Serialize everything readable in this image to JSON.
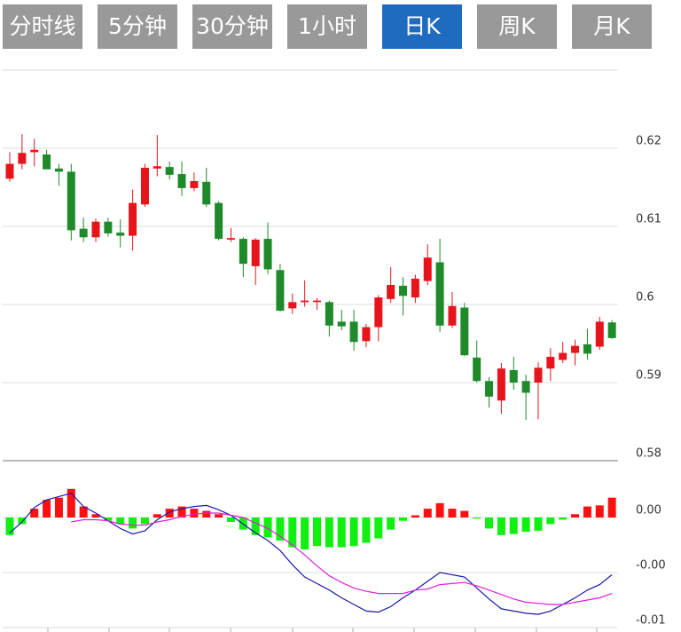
{
  "tabs": [
    {
      "label": "分时线"
    },
    {
      "label": "5分钟"
    },
    {
      "label": "30分钟"
    },
    {
      "label": "1小时"
    },
    {
      "label": "日K"
    },
    {
      "label": "周K"
    },
    {
      "label": "月K"
    }
  ],
  "active_tab": 4,
  "chart_data": [
    {
      "type": "candlestick",
      "up_color": "#e8141c",
      "down_color": "#1e8a2a",
      "grid": true,
      "ylim": [
        0.58,
        0.63
      ],
      "yticks": [
        0.58,
        0.59,
        0.6,
        0.61,
        0.62
      ],
      "open": [
        0.6161,
        0.618,
        0.6195,
        0.6192,
        0.6174,
        0.617,
        0.6097,
        0.6086,
        0.6106,
        0.6092,
        0.6088,
        0.6128,
        0.6174,
        0.6176,
        0.6167,
        0.6149,
        0.6157,
        0.613,
        0.6083,
        0.6084,
        0.6049,
        0.6084,
        0.6044,
        0.5995,
        0.6003,
        0.6003,
        0.6003,
        0.5978,
        0.5978,
        0.5953,
        0.5971,
        0.6007,
        0.6024,
        0.6009,
        0.603,
        0.6054,
        0.5973,
        0.5996,
        0.5932,
        0.5902,
        0.5877,
        0.5916,
        0.5902,
        0.59,
        0.5918,
        0.5929,
        0.5938,
        0.5949,
        0.5946,
        0.5977
      ],
      "high": [
        0.6195,
        0.6218,
        0.6212,
        0.6198,
        0.618,
        0.618,
        0.6111,
        0.611,
        0.6111,
        0.6109,
        0.6147,
        0.618,
        0.6217,
        0.6183,
        0.6183,
        0.6169,
        0.6175,
        0.6132,
        0.6098,
        0.6086,
        0.6085,
        0.6105,
        0.6052,
        0.6014,
        0.6031,
        0.6008,
        0.6005,
        0.5993,
        0.5993,
        0.5975,
        0.6012,
        0.6048,
        0.6035,
        0.6038,
        0.6077,
        0.6084,
        0.6016,
        0.6002,
        0.5954,
        0.5907,
        0.5925,
        0.5933,
        0.591,
        0.5926,
        0.5944,
        0.5952,
        0.5955,
        0.5969,
        0.5984,
        0.598
      ],
      "low": [
        0.6157,
        0.6173,
        0.6177,
        0.6173,
        0.6152,
        0.6082,
        0.608,
        0.608,
        0.6087,
        0.6073,
        0.6069,
        0.6125,
        0.6164,
        0.616,
        0.6139,
        0.6145,
        0.6125,
        0.6082,
        0.608,
        0.6035,
        0.6025,
        0.6039,
        0.5991,
        0.5988,
        0.5997,
        0.5993,
        0.5959,
        0.5967,
        0.5941,
        0.5945,
        0.5953,
        0.6002,
        0.5986,
        0.6002,
        0.6025,
        0.5965,
        0.597,
        0.5934,
        0.59,
        0.5868,
        0.586,
        0.5891,
        0.5852,
        0.5853,
        0.5902,
        0.5925,
        0.5922,
        0.5929,
        0.5942,
        0.5956
      ],
      "close": [
        0.618,
        0.6194,
        0.6198,
        0.6173,
        0.617,
        0.6095,
        0.6086,
        0.6106,
        0.6091,
        0.6088,
        0.613,
        0.6175,
        0.6177,
        0.6166,
        0.6149,
        0.6158,
        0.6128,
        0.6084,
        0.6085,
        0.6052,
        0.6083,
        0.6045,
        0.5992,
        0.6003,
        0.6005,
        0.6005,
        0.5973,
        0.5972,
        0.5952,
        0.5971,
        0.6009,
        0.6025,
        0.6011,
        0.6033,
        0.606,
        0.5973,
        0.5998,
        0.5935,
        0.5902,
        0.5882,
        0.5918,
        0.59,
        0.5887,
        0.5919,
        0.5933,
        0.5938,
        0.5947,
        0.5937,
        0.5978,
        0.5957
      ]
    },
    {
      "type": "macd",
      "pos_color": "#ff1010",
      "neg_color": "#10f010",
      "grid": true,
      "ylim": [
        -0.01,
        0.005
      ],
      "yticks": [
        {
          "value": 0,
          "label": "0.00"
        },
        {
          "value": -0.005,
          "label": "-0.00"
        },
        {
          "value": -0.01,
          "label": "-0.01"
        }
      ],
      "histogram": [
        -0.0016,
        -0.0006,
        0.0008,
        0.0016,
        0.0018,
        0.0026,
        0.001,
        0.0003,
        -0.0003,
        -0.0006,
        -0.001,
        -0.0006,
        0.0003,
        0.0008,
        0.001,
        0.0008,
        0.0006,
        0.0003,
        -0.0004,
        -0.0011,
        -0.0016,
        -0.0018,
        -0.0021,
        -0.0027,
        -0.0029,
        -0.0026,
        -0.0027,
        -0.0027,
        -0.0026,
        -0.0023,
        -0.0019,
        -0.0011,
        -0.0003,
        0.0002,
        0.0008,
        0.0013,
        0.0008,
        0.0006,
        -0.0001,
        -0.001,
        -0.0016,
        -0.0015,
        -0.0013,
        -0.0012,
        -0.0006,
        -0.0002,
        0.0003,
        0.001,
        0.0011,
        0.0018
      ],
      "series": [
        {
          "color": "#1a1aa8",
          "values": [
            -0.0014,
            -0.0004,
            0.0009,
            0.0016,
            0.0019,
            0.0022,
            0.001,
            0.0004,
            -0.0003,
            -0.001,
            -0.0015,
            -0.0012,
            -0.0002,
            0.0005,
            0.0008,
            0.001,
            0.0011,
            0.0007,
            0.0002,
            -0.0006,
            -0.0014,
            -0.0021,
            -0.003,
            -0.0043,
            -0.0054,
            -0.006,
            -0.0066,
            -0.0073,
            -0.0079,
            -0.0085,
            -0.0086,
            -0.0081,
            -0.0073,
            -0.0066,
            -0.0058,
            -0.005,
            -0.0052,
            -0.0054,
            -0.0064,
            -0.0074,
            -0.0083,
            -0.0085,
            -0.0087,
            -0.0088,
            -0.0085,
            -0.0079,
            -0.0073,
            -0.0066,
            -0.0061,
            -0.0052
          ]
        },
        {
          "color": "#e01ee0",
          "values": [
            null,
            null,
            null,
            null,
            null,
            -0.0004,
            -0.0002,
            -0.0002,
            -0.0003,
            -0.0006,
            -0.0007,
            -0.0007,
            -0.0004,
            -0.0002,
            0.0001,
            0.0003,
            0.0004,
            0.0004,
            0.0002,
            0,
            -0.0005,
            -0.001,
            -0.0017,
            -0.0025,
            -0.0034,
            -0.0044,
            -0.0053,
            -0.0059,
            -0.0064,
            -0.0067,
            -0.0069,
            -0.0069,
            -0.0069,
            -0.0066,
            -0.0065,
            -0.0061,
            -0.006,
            -0.0059,
            -0.0062,
            -0.0066,
            -0.007,
            -0.0074,
            -0.0077,
            -0.0078,
            -0.0079,
            -0.0079,
            -0.0077,
            -0.0075,
            -0.0073,
            -0.0069
          ]
        }
      ]
    }
  ]
}
